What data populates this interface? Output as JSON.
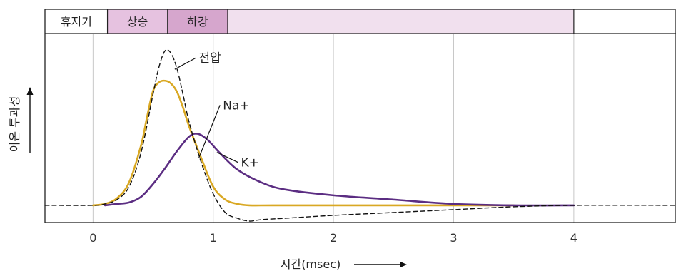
{
  "chart_data": {
    "type": "line",
    "xlabel": "시간(msec)",
    "ylabel": "이온 투과성",
    "x_ticks": [
      0,
      1,
      2,
      3,
      4
    ],
    "xlim": [
      -0.4,
      4.85
    ],
    "ylim": [
      -0.12,
      1.2
    ],
    "grid": "vertical",
    "phases": [
      {
        "label": "휴지기",
        "start": -0.4,
        "end": 0.12,
        "color": "#ffffff"
      },
      {
        "label": "상승",
        "start": 0.12,
        "end": 0.62,
        "color": "#e6c2e0"
      },
      {
        "label": "하강",
        "start": 0.62,
        "end": 1.12,
        "color": "#d6a6cd"
      },
      {
        "label": "",
        "start": 1.12,
        "end": 4.0,
        "color": "#f1e0ee"
      },
      {
        "label": "",
        "start": 4.0,
        "end": 4.85,
        "color": "#ffffff"
      }
    ],
    "series": [
      {
        "name": "전압",
        "color": "#111111",
        "dashed": true,
        "label_x": 0.88,
        "label_y": 1.03,
        "x": [
          -0.4,
          0.0,
          0.1,
          0.2,
          0.3,
          0.4,
          0.5,
          0.55,
          0.6,
          0.65,
          0.7,
          0.75,
          0.8,
          0.9,
          1.0,
          1.1,
          1.2,
          1.3,
          1.4,
          1.6,
          2.0,
          2.5,
          3.0,
          3.5,
          4.0,
          4.85
        ],
        "y": [
          0.0,
          0.0,
          0.01,
          0.04,
          0.13,
          0.37,
          0.78,
          0.97,
          1.08,
          1.06,
          0.95,
          0.77,
          0.58,
          0.3,
          0.08,
          -0.05,
          -0.09,
          -0.11,
          -0.1,
          -0.09,
          -0.07,
          -0.05,
          -0.03,
          -0.01,
          0.0,
          0.0
        ]
      },
      {
        "name": "Na+",
        "color": "#d9a823",
        "dashed": false,
        "label_x": 1.08,
        "label_y": 0.7,
        "x": [
          0.0,
          0.1,
          0.2,
          0.3,
          0.4,
          0.45,
          0.5,
          0.55,
          0.6,
          0.65,
          0.7,
          0.75,
          0.8,
          0.9,
          1.0,
          1.1,
          1.2,
          1.3,
          1.5,
          2.0,
          3.0,
          3.5
        ],
        "y": [
          0.0,
          0.01,
          0.05,
          0.16,
          0.42,
          0.62,
          0.8,
          0.86,
          0.87,
          0.85,
          0.79,
          0.68,
          0.55,
          0.33,
          0.13,
          0.04,
          0.01,
          0.0,
          0.0,
          0.0,
          0.0,
          0.0
        ]
      },
      {
        "name": "K+",
        "color": "#5b2d82",
        "dashed": false,
        "label_x": 1.23,
        "label_y": 0.3,
        "x": [
          0.1,
          0.2,
          0.3,
          0.4,
          0.5,
          0.6,
          0.7,
          0.8,
          0.87,
          0.95,
          1.05,
          1.2,
          1.4,
          1.6,
          2.0,
          2.5,
          3.0,
          3.5,
          4.0
        ],
        "y": [
          0.0,
          0.01,
          0.02,
          0.06,
          0.15,
          0.26,
          0.38,
          0.48,
          0.5,
          0.46,
          0.37,
          0.25,
          0.16,
          0.11,
          0.07,
          0.04,
          0.01,
          0.0,
          0.0
        ]
      }
    ],
    "colors": {
      "frame": "#222222",
      "grid": "#c8c8c8",
      "tick_label": "#333333"
    }
  }
}
